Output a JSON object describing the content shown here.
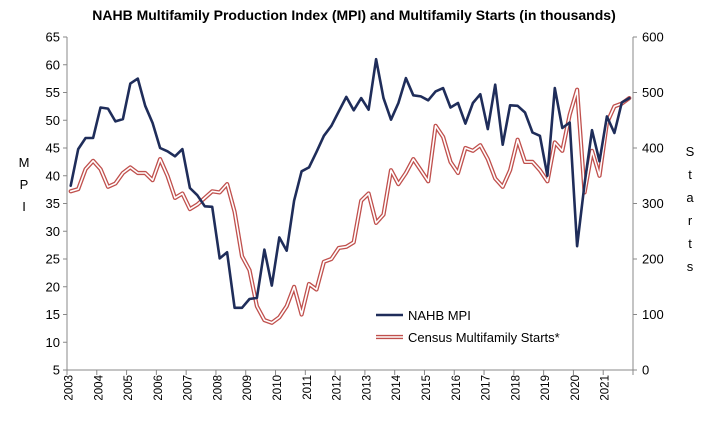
{
  "chart_data": {
    "type": "line",
    "title": "NAHB Multifamily Production Index (MPI) and Multifamily Starts (in thousands)",
    "ylabel": "MPI",
    "y2label": "Starts",
    "ylim": [
      5,
      65
    ],
    "y2lim": [
      0,
      600
    ],
    "yticks": [
      "5",
      "10",
      "15",
      "20",
      "25",
      "30",
      "35",
      "40",
      "45",
      "50",
      "55",
      "60",
      "65"
    ],
    "y2ticks": [
      "0",
      "100",
      "200",
      "300",
      "400",
      "500",
      "600"
    ],
    "xlim": [
      2003,
      2022
    ],
    "xticks": [
      "2003",
      "2004",
      "2005",
      "2006",
      "2007",
      "2008",
      "2009",
      "2010",
      "2011",
      "2012",
      "2013",
      "2014",
      "2015",
      "2016",
      "2017",
      "2018",
      "2019",
      "2020",
      "2021"
    ],
    "grid": false,
    "legend_position": "bottom-right",
    "series": [
      {
        "name": "NAHB MPI",
        "color": "#1f2d5a",
        "axis": "left",
        "values": [
          38.2,
          44.8,
          46.8,
          46.8,
          52.3,
          52.1,
          49.8,
          50.2,
          56.6,
          57.5,
          52.6,
          49.5,
          45.0,
          44.4,
          43.5,
          44.8,
          37.8,
          36.5,
          34.5,
          34.4,
          25.1,
          26.2,
          16.2,
          16.2,
          17.8,
          18.0,
          26.7,
          20.2,
          28.9,
          26.5,
          35.5,
          40.8,
          41.5,
          44.3,
          47.2,
          49.0,
          51.6,
          54.2,
          51.8,
          54.0,
          51.9,
          61.0,
          54.0,
          50.1,
          53.1,
          57.6,
          54.5,
          54.3,
          53.6,
          55.2,
          55.8,
          52.3,
          53.1,
          49.4,
          53.1,
          54.7,
          48.4,
          56.4,
          45.6,
          52.7,
          52.6,
          51.4,
          47.8,
          47.2,
          40.0,
          55.8,
          48.6,
          49.6,
          27.3,
          38.6,
          48.2,
          42.6,
          50.7,
          47.7,
          53.2,
          54.0
        ]
      },
      {
        "name": "Census Multifamily Starts*",
        "color": "#c0504d",
        "axis": "right",
        "values": [
          322,
          326,
          362,
          377,
          362,
          330,
          336,
          355,
          365,
          355,
          355,
          342,
          380,
          350,
          310,
          318,
          290,
          298,
          310,
          322,
          320,
          335,
          285,
          205,
          180,
          115,
          90,
          85,
          95,
          115,
          150,
          100,
          155,
          145,
          195,
          200,
          220,
          222,
          230,
          305,
          318,
          265,
          280,
          360,
          335,
          355,
          380,
          360,
          340,
          440,
          420,
          375,
          355,
          400,
          395,
          405,
          380,
          345,
          330,
          360,
          415,
          375,
          375,
          360,
          340,
          410,
          395,
          460,
          505,
          320,
          395,
          350,
          445,
          475,
          480,
          490
        ]
      }
    ]
  }
}
